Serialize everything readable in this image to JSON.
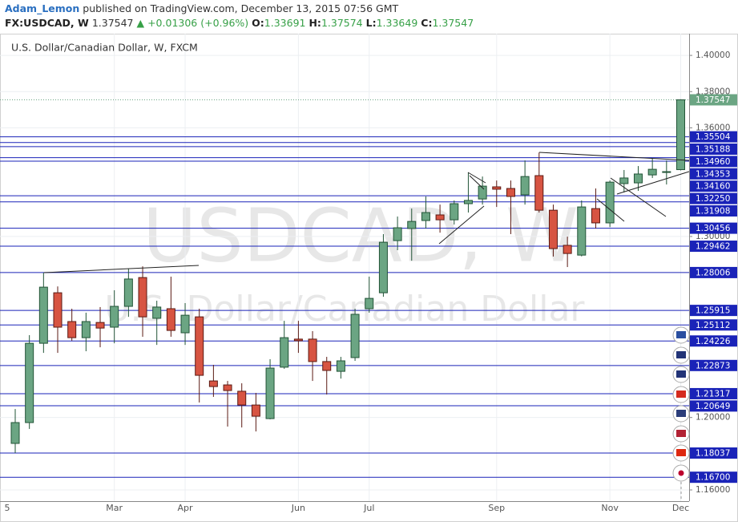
{
  "header": {
    "author": "Adam_Lemon",
    "published": "published on TradingView.com, December 13, 2015 07:56 GMT",
    "symbol": "FX:USDCAD, W",
    "price": "1.37547",
    "change": "▲ +0.01306 (+0.96%)",
    "ohlc": [
      {
        "key": "O:",
        "value": "1.33691"
      },
      {
        "key": "H:",
        "value": "1.37574"
      },
      {
        "key": "L:",
        "value": "1.33649"
      },
      {
        "key": "C:",
        "value": "1.37547"
      }
    ]
  },
  "chart_data": {
    "type": "candlestick",
    "title": "U.S. Dollar/Canadian Dollar, W, FXCM",
    "watermark": "USDCAD, W",
    "watermark_subtitle": "U.S. Dollar/Canadian Dollar",
    "x_start_label": "5",
    "categories": [
      null,
      null,
      null,
      null,
      null,
      null,
      null,
      "Mar",
      null,
      null,
      null,
      null,
      "Apr",
      null,
      null,
      null,
      null,
      null,
      null,
      null,
      "Jun",
      null,
      null,
      null,
      null,
      "Jul",
      null,
      null,
      null,
      null,
      null,
      null,
      null,
      null,
      "Sep",
      null,
      null,
      null,
      null,
      null,
      null,
      null,
      "Nov",
      null,
      null,
      null,
      null,
      "Dec"
    ],
    "open": [
      1.1857,
      1.1972,
      1.241,
      1.2689,
      1.253,
      1.2441,
      1.2525,
      1.2499,
      1.2614,
      1.2773,
      1.2548,
      1.2601,
      1.2468,
      1.2556,
      1.2202,
      1.218,
      1.2145,
      1.2069,
      1.1994,
      1.2278,
      1.2433,
      1.2433,
      1.2309,
      1.2255,
      1.2331,
      1.2601,
      1.2689,
      1.2977,
      1.3044,
      1.3088,
      1.3119,
      1.3092,
      1.3181,
      1.3207,
      1.3274,
      1.3265,
      1.323,
      1.3336,
      1.3145,
      1.2951,
      1.2897,
      1.3154,
      1.3075,
      1.3292,
      1.3296,
      1.334,
      1.3354,
      1.33691
    ],
    "high": [
      1.2047,
      1.2455,
      1.28,
      1.2724,
      1.2601,
      1.2579,
      1.261,
      1.2703,
      1.2822,
      1.2835,
      1.2645,
      1.2778,
      1.2632,
      1.2601,
      1.2291,
      1.2202,
      1.2189,
      1.2136,
      1.2322,
      1.2534,
      1.2534,
      1.2477,
      1.2335,
      1.2335,
      1.2601,
      1.2778,
      1.3013,
      1.311,
      1.3154,
      1.3221,
      1.3176,
      1.3199,
      1.3354,
      1.3331,
      1.3309,
      1.3309,
      1.342,
      1.3464,
      1.3176,
      1.2999,
      1.3199,
      1.3265,
      1.3309,
      1.3367,
      1.3389,
      1.3429,
      1.342,
      1.37574
    ],
    "low": [
      1.1804,
      1.1937,
      1.2357,
      1.2357,
      1.2424,
      1.2366,
      1.2388,
      1.241,
      1.2556,
      1.2446,
      1.2401,
      1.2446,
      1.2401,
      1.2083,
      1.2114,
      1.195,
      1.1945,
      1.1923,
      1.199,
      1.2269,
      1.2357,
      1.2202,
      1.2127,
      1.2215,
      1.2313,
      1.2579,
      1.2667,
      1.2924,
      1.2866,
      1.3044,
      1.3021,
      1.3066,
      1.3132,
      1.3176,
      1.3163,
      1.3013,
      1.3176,
      1.3132,
      1.2889,
      1.2831,
      1.289,
      1.3044,
      1.3052,
      1.3243,
      1.3252,
      1.3323,
      1.3287,
      1.33649
    ],
    "close": [
      1.1972,
      1.241,
      1.272,
      1.2499,
      1.2441,
      1.253,
      1.2494,
      1.2614,
      1.2765,
      1.2556,
      1.261,
      1.2481,
      1.2565,
      1.2233,
      1.2171,
      1.2149,
      1.2069,
      1.2007,
      1.2273,
      1.2441,
      1.2424,
      1.2309,
      1.226,
      1.2313,
      1.257,
      1.2658,
      1.2968,
      1.3048,
      1.3083,
      1.3132,
      1.3092,
      1.3181,
      1.3199,
      1.3278,
      1.3261,
      1.3221,
      1.3331,
      1.3145,
      1.2933,
      1.2906,
      1.3163,
      1.3075,
      1.33,
      1.3323,
      1.3345,
      1.3371,
      1.3358,
      1.37547
    ],
    "up_color": "#6ba583",
    "down_color": "#d75442",
    "ylim": [
      1.1538,
      1.412
    ],
    "yticks": [
      {
        "value": 1.16,
        "label": "1.16000"
      },
      {
        "value": 1.2,
        "label": "1.20000"
      },
      {
        "value": 1.3,
        "label": "1.30000"
      },
      {
        "value": 1.36,
        "label": "1.36000"
      },
      {
        "value": 1.38,
        "label": "1.38000"
      },
      {
        "value": 1.4,
        "label": "1.40000"
      }
    ],
    "grid": true,
    "levels": [
      {
        "value": 1.35504,
        "label": "1.35504"
      },
      {
        "value": 1.35188,
        "label": "1.35188"
      },
      {
        "value": 1.3496,
        "label": "1.34960"
      },
      {
        "value": 1.34353,
        "label": "1.34353"
      },
      {
        "value": 1.3416,
        "label": "1.34160"
      },
      {
        "value": 1.3225,
        "label": "1.32250"
      },
      {
        "value": 1.31908,
        "label": "1.31908"
      },
      {
        "value": 1.30456,
        "label": "1.30456"
      },
      {
        "value": 1.29462,
        "label": "1.29462"
      },
      {
        "value": 1.28006,
        "label": "1.28006"
      },
      {
        "value": 1.25915,
        "label": "1.25915"
      },
      {
        "value": 1.25112,
        "label": "1.25112"
      },
      {
        "value": 1.24226,
        "label": "1.24226"
      },
      {
        "value": 1.22873,
        "label": "1.22873"
      },
      {
        "value": 1.21317,
        "label": "1.21317"
      },
      {
        "value": 1.20649,
        "label": "1.20649"
      },
      {
        "value": 1.18037,
        "label": "1.18037"
      },
      {
        "value": 1.167,
        "label": "1.16700"
      }
    ],
    "level_color": "#1a23b8",
    "last_price": 1.37547,
    "last_price_color": "#6ba583"
  }
}
